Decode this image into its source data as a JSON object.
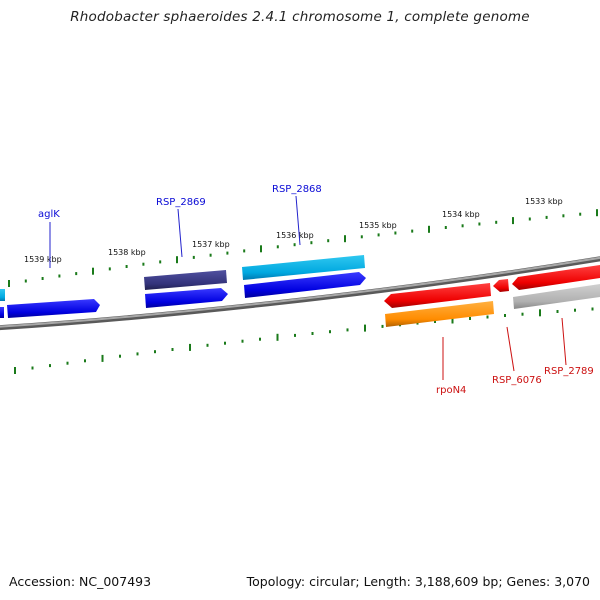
{
  "title": "Rhodobacter sphaeroides 2.4.1 chromosome 1, complete genome",
  "footer": {
    "accession": "Accession: NC_007493",
    "topology": "Topology: circular; Length: 3,188,609 bp; Genes: 3,070"
  },
  "kbp_labels": [
    "1539 kbp",
    "1538 kbp",
    "1537 kbp",
    "1536 kbp",
    "1535 kbp",
    "1534 kbp",
    "1533 kbp"
  ],
  "genes": [
    {
      "name": "aglK",
      "color": "#0b0bd6"
    },
    {
      "name": "RSP_2869",
      "color": "#0b0bd6"
    },
    {
      "name": "RSP_2868",
      "color": "#0b0bd6"
    },
    {
      "name": "rpoN4",
      "color": "#cc1111"
    },
    {
      "name": "RSP_6076",
      "color": "#cc1111"
    },
    {
      "name": "RSP_2789",
      "color": "#cc1111"
    }
  ],
  "colors": {
    "backbone": "#808080",
    "tick": "#1a7a1a",
    "forward_gene": "#0000ee",
    "reverse_gene": "#ee0000",
    "protein_forward": "#3b3b7a",
    "cds_forward": "#00b8e6",
    "cds_reverse": "#ff8c00",
    "pseudo": "#b0b0b0"
  }
}
